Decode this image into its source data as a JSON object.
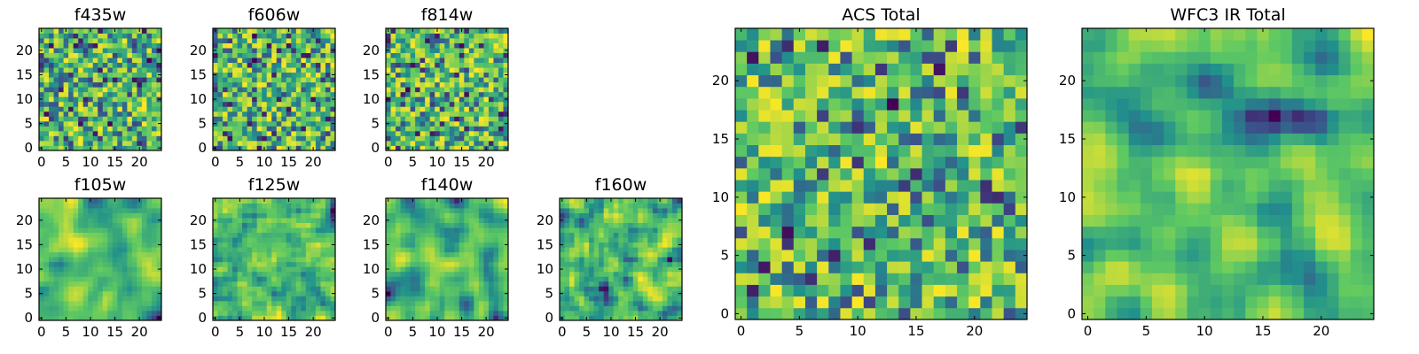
{
  "figure": {
    "colormap": "viridis",
    "colormap_stops": [
      "#440154",
      "#3b528b",
      "#21918c",
      "#5ec962",
      "#fde725"
    ]
  },
  "chart_data": [
    {
      "type": "heatmap",
      "title": "f435w",
      "grid_size": 25,
      "seed": 11,
      "smoothness": 0,
      "xticks": [
        0,
        5,
        10,
        15,
        20
      ],
      "yticks": [
        0,
        5,
        10,
        15,
        20
      ],
      "xlim": [
        0,
        25
      ],
      "ylim": [
        0,
        25
      ],
      "grid": false,
      "colormap": "viridis"
    },
    {
      "type": "heatmap",
      "title": "f606w",
      "grid_size": 25,
      "seed": 23,
      "smoothness": 0,
      "xticks": [
        0,
        5,
        10,
        15,
        20
      ],
      "yticks": [
        0,
        5,
        10,
        15,
        20
      ],
      "xlim": [
        0,
        25
      ],
      "ylim": [
        0,
        25
      ],
      "grid": false,
      "colormap": "viridis"
    },
    {
      "type": "heatmap",
      "title": "f814w",
      "grid_size": 25,
      "seed": 37,
      "smoothness": 0,
      "xticks": [
        0,
        5,
        10,
        15,
        20
      ],
      "yticks": [
        0,
        5,
        10,
        15,
        20
      ],
      "xlim": [
        0,
        25
      ],
      "ylim": [
        0,
        25
      ],
      "grid": false,
      "colormap": "viridis"
    },
    {
      "type": "heatmap",
      "title": "f105w",
      "grid_size": 25,
      "seed": 41,
      "smoothness": 2,
      "xticks": [
        0,
        5,
        10,
        15,
        20
      ],
      "yticks": [
        0,
        5,
        10,
        15,
        20
      ],
      "xlim": [
        0,
        25
      ],
      "ylim": [
        0,
        25
      ],
      "grid": false,
      "colormap": "viridis"
    },
    {
      "type": "heatmap",
      "title": "f125w",
      "grid_size": 25,
      "seed": 53,
      "smoothness": 1,
      "xticks": [
        0,
        5,
        10,
        15,
        20
      ],
      "yticks": [
        0,
        5,
        10,
        15,
        20
      ],
      "xlim": [
        0,
        25
      ],
      "ylim": [
        0,
        25
      ],
      "grid": false,
      "colormap": "viridis"
    },
    {
      "type": "heatmap",
      "title": "f140w",
      "grid_size": 25,
      "seed": 67,
      "smoothness": 2,
      "xticks": [
        0,
        5,
        10,
        15,
        20
      ],
      "yticks": [
        0,
        5,
        10,
        15,
        20
      ],
      "xlim": [
        0,
        25
      ],
      "ylim": [
        0,
        25
      ],
      "grid": false,
      "colormap": "viridis"
    },
    {
      "type": "heatmap",
      "title": "f160w",
      "grid_size": 25,
      "seed": 79,
      "smoothness": 1,
      "xticks": [
        0,
        5,
        10,
        15,
        20
      ],
      "yticks": [
        0,
        5,
        10,
        15,
        20
      ],
      "xlim": [
        0,
        25
      ],
      "ylim": [
        0,
        25
      ],
      "grid": false,
      "colormap": "viridis"
    },
    {
      "type": "heatmap",
      "title": "ACS Total",
      "grid_size": 25,
      "seed": 83,
      "smoothness": 0,
      "xticks": [
        0,
        5,
        10,
        15,
        20
      ],
      "yticks": [
        0,
        5,
        10,
        15,
        20
      ],
      "xlim": [
        0,
        25
      ],
      "ylim": [
        0,
        25
      ],
      "grid": false,
      "colormap": "viridis"
    },
    {
      "type": "heatmap",
      "title": "WFC3 IR Total",
      "grid_size": 25,
      "seed": 97,
      "smoothness": 2,
      "xticks": [
        0,
        5,
        10,
        15,
        20
      ],
      "yticks": [
        0,
        5,
        10,
        15,
        20
      ],
      "xlim": [
        0,
        25
      ],
      "ylim": [
        0,
        25
      ],
      "grid": false,
      "colormap": "viridis"
    }
  ]
}
